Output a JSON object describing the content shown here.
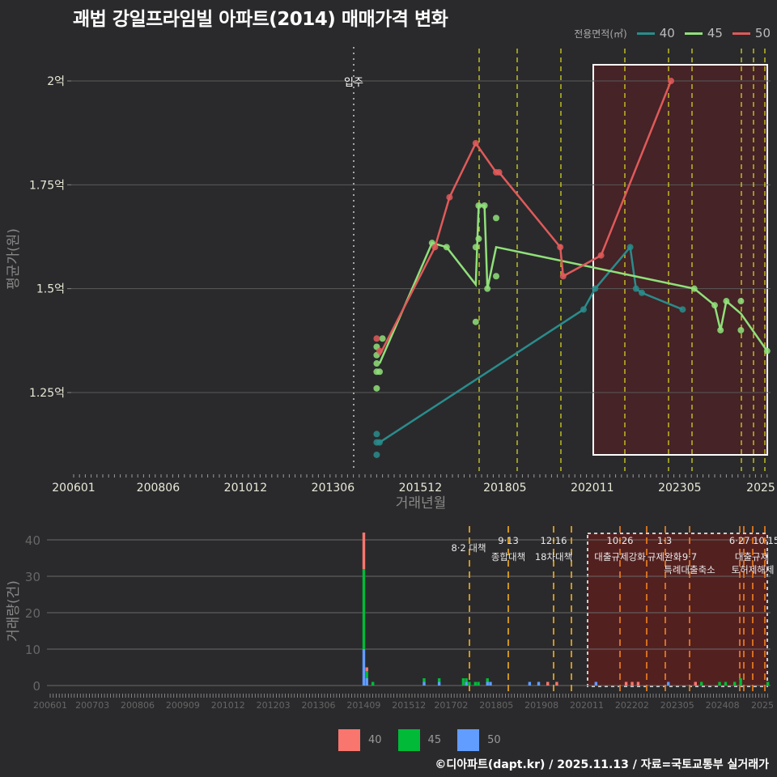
{
  "title": "괘법 강일프라임빌 아파트(2014) 매매가격 변화",
  "footer": "©디아파트(dapt.kr) / 2025.11.13 / 자료=국토교통부 실거래가",
  "legend_top": {
    "title": "전용면적(㎡)",
    "items": [
      {
        "label": "40",
        "color": "#2a8c8c"
      },
      {
        "label": "45",
        "color": "#90e07a"
      },
      {
        "label": "50",
        "color": "#e05a5a"
      }
    ]
  },
  "legend_bottom": {
    "items": [
      {
        "label": "40",
        "color": "#f8766d"
      },
      {
        "label": "45",
        "color": "#00ba38"
      },
      {
        "label": "50",
        "color": "#619cff"
      }
    ]
  },
  "chart_data": [
    {
      "type": "line",
      "title": "괘법 강일프라임빌 아파트(2014) 매매가격 변화",
      "xlabel": "거래년월",
      "ylabel": "평균가(원)",
      "x_ticks": [
        "200601",
        "200806",
        "201012",
        "201306",
        "201512",
        "201805",
        "202011",
        "202305",
        "2025"
      ],
      "y_ticks": [
        {
          "value": 1.25,
          "label": "1.25억"
        },
        {
          "value": 1.5,
          "label": "1.5억"
        },
        {
          "value": 1.75,
          "label": "1.75억"
        },
        {
          "value": 2.0,
          "label": "2억"
        }
      ],
      "ylim": [
        1.06,
        2.08
      ],
      "grid": true,
      "legend_position": "top-right",
      "annotations": [
        {
          "type": "vline-dotted",
          "x": "201401",
          "label": "입주"
        },
        {
          "type": "highlight-rect",
          "x_from": "202101",
          "x_to": "202510"
        }
      ],
      "policy_lines": [
        "201708",
        "201809",
        "201912",
        "202010",
        "202110",
        "202301",
        "202309",
        "202406",
        "202410",
        "202508",
        "202510"
      ],
      "series": [
        {
          "name": "40",
          "color": "#2a8c8c",
          "points": [
            [
              "201409",
              1.15
            ],
            [
              "201409",
              1.13
            ],
            [
              "201410",
              1.13
            ],
            [
              "201409",
              1.1
            ],
            [
              "202008",
              1.45
            ],
            [
              "202012",
              1.5
            ],
            [
              "202112",
              1.6
            ],
            [
              "202202",
              1.5
            ],
            [
              "202204",
              1.49
            ],
            [
              "202306",
              1.45
            ]
          ],
          "line": [
            [
              "201410",
              1.13
            ],
            [
              "202008",
              1.45
            ],
            [
              "202012",
              1.5
            ],
            [
              "202112",
              1.6
            ],
            [
              "202202",
              1.5
            ],
            [
              "202204",
              1.49
            ],
            [
              "202306",
              1.45
            ]
          ]
        },
        {
          "name": "45",
          "color": "#90e07a",
          "points": [
            [
              "201409",
              1.36
            ],
            [
              "201409",
              1.34
            ],
            [
              "201409",
              1.32
            ],
            [
              "201409",
              1.3
            ],
            [
              "201410",
              1.3
            ],
            [
              "201409",
              1.26
            ],
            [
              "201411",
              1.38
            ],
            [
              "201604",
              1.61
            ],
            [
              "201609",
              1.6
            ],
            [
              "201707",
              1.42
            ],
            [
              "201707",
              1.6
            ],
            [
              "201708",
              1.62
            ],
            [
              "201708",
              1.7
            ],
            [
              "201710",
              1.7
            ],
            [
              "201711",
              1.5
            ],
            [
              "201802",
              1.67
            ],
            [
              "201802",
              1.53
            ],
            [
              "202310",
              1.5
            ],
            [
              "202405",
              1.46
            ],
            [
              "202407",
              1.4
            ],
            [
              "202409",
              1.47
            ],
            [
              "202502",
              1.47
            ],
            [
              "202502",
              1.4
            ],
            [
              "202511",
              1.35
            ]
          ],
          "line": [
            [
              "201410",
              1.32
            ],
            [
              "201604",
              1.61
            ],
            [
              "201609",
              1.6
            ],
            [
              "201707",
              1.51
            ],
            [
              "201708",
              1.7
            ],
            [
              "201710",
              1.7
            ],
            [
              "201711",
              1.5
            ],
            [
              "201802",
              1.6
            ],
            [
              "202310",
              1.5
            ],
            [
              "202405",
              1.46
            ],
            [
              "202407",
              1.4
            ],
            [
              "202409",
              1.47
            ],
            [
              "202502",
              1.44
            ],
            [
              "202511",
              1.35
            ]
          ]
        },
        {
          "name": "50",
          "color": "#e05a5a",
          "points": [
            [
              "201409",
              1.38
            ],
            [
              "201410",
              1.35
            ],
            [
              "201605",
              1.6
            ],
            [
              "201610",
              1.72
            ],
            [
              "201707",
              1.85
            ],
            [
              "201802",
              1.78
            ],
            [
              "201803",
              1.78
            ],
            [
              "201912",
              1.6
            ],
            [
              "202001",
              1.53
            ],
            [
              "202102",
              1.58
            ],
            [
              "202302",
              2.0
            ]
          ],
          "line": [
            [
              "201410",
              1.34
            ],
            [
              "201605",
              1.6
            ],
            [
              "201610",
              1.72
            ],
            [
              "201707",
              1.85
            ],
            [
              "201802",
              1.78
            ],
            [
              "201803",
              1.78
            ],
            [
              "201912",
              1.6
            ],
            [
              "202001",
              1.53
            ],
            [
              "202102",
              1.58
            ],
            [
              "202302",
              2.0
            ]
          ]
        }
      ]
    },
    {
      "type": "bar",
      "stacked": true,
      "xlabel": "",
      "ylabel": "거래량(건)",
      "x_ticks": [
        "200601",
        "200703",
        "200806",
        "200909",
        "201012",
        "201203",
        "201306",
        "201409",
        "201512",
        "201702",
        "201805",
        "201908",
        "202011",
        "202202",
        "202305",
        "202408",
        "2025"
      ],
      "y_ticks": [
        0,
        10,
        20,
        30,
        40
      ],
      "ylim": [
        0,
        44
      ],
      "series_names": [
        "40",
        "45",
        "50"
      ],
      "policy_annotations": [
        {
          "x": "201708",
          "date": "8·2 대책",
          "label": ""
        },
        {
          "x": "201809",
          "date": "9·13",
          "label": "종합대책"
        },
        {
          "x": "201912",
          "date": "12·16",
          "label": "18차대책"
        },
        {
          "x": "202010",
          "date": "",
          "label": ""
        },
        {
          "x": "202110",
          "date": "10·26",
          "label": "대출규제강화"
        },
        {
          "x": "202301",
          "date": "1·3",
          "label": "규제완화"
        },
        {
          "x": "202309",
          "date": "9·7",
          "label": "특례대출축소"
        },
        {
          "x": "202406",
          "date": "",
          "label": ""
        },
        {
          "x": "202410",
          "date": "6·27",
          "label": "대출규제"
        },
        {
          "x": "202508",
          "date": "10·15",
          "label": "토허제해제"
        },
        {
          "x": "202510",
          "date": "",
          "label": ""
        }
      ],
      "highlight_rect": {
        "x_from": "202011",
        "x_to": "202511"
      },
      "bars": [
        {
          "x": "201409",
          "40": 10,
          "45": 22,
          "50": 10
        },
        {
          "x": "201410",
          "40": 1,
          "45": 2,
          "50": 2
        },
        {
          "x": "201412",
          "40": 0,
          "45": 1,
          "50": 0
        },
        {
          "x": "201605",
          "40": 0,
          "45": 1,
          "50": 1
        },
        {
          "x": "201610",
          "40": 0,
          "45": 1,
          "50": 1
        },
        {
          "x": "201706",
          "40": 0,
          "45": 2,
          "50": 0
        },
        {
          "x": "201707",
          "40": 0,
          "45": 1,
          "50": 1
        },
        {
          "x": "201708",
          "40": 0,
          "45": 1,
          "50": 0
        },
        {
          "x": "201710",
          "40": 0,
          "45": 1,
          "50": 0
        },
        {
          "x": "201711",
          "40": 0,
          "45": 1,
          "50": 0
        },
        {
          "x": "201802",
          "40": 0,
          "45": 1,
          "50": 1
        },
        {
          "x": "201803",
          "40": 0,
          "45": 0,
          "50": 1
        },
        {
          "x": "201904",
          "40": 0,
          "45": 0,
          "50": 1
        },
        {
          "x": "201907",
          "40": 0,
          "45": 0,
          "50": 1
        },
        {
          "x": "201910",
          "40": 1,
          "45": 0,
          "50": 0
        },
        {
          "x": "202001",
          "40": 1,
          "45": 0,
          "50": 0
        },
        {
          "x": "202102",
          "40": 0,
          "45": 0,
          "50": 1
        },
        {
          "x": "202112",
          "40": 1,
          "45": 0,
          "50": 0
        },
        {
          "x": "202202",
          "40": 1,
          "45": 0,
          "50": 0
        },
        {
          "x": "202204",
          "40": 1,
          "45": 0,
          "50": 0
        },
        {
          "x": "202302",
          "40": 0,
          "45": 0,
          "50": 1
        },
        {
          "x": "202311",
          "40": 1,
          "45": 0,
          "50": 0
        },
        {
          "x": "202401",
          "40": 0,
          "45": 1,
          "50": 0
        },
        {
          "x": "202407",
          "40": 0,
          "45": 1,
          "50": 0
        },
        {
          "x": "202409",
          "40": 0,
          "45": 1,
          "50": 0
        },
        {
          "x": "202412",
          "40": 0,
          "45": 1,
          "50": 0
        },
        {
          "x": "202502",
          "40": 0,
          "45": 2,
          "50": 0
        },
        {
          "x": "202511",
          "40": 0,
          "45": 1,
          "50": 0
        }
      ]
    }
  ]
}
